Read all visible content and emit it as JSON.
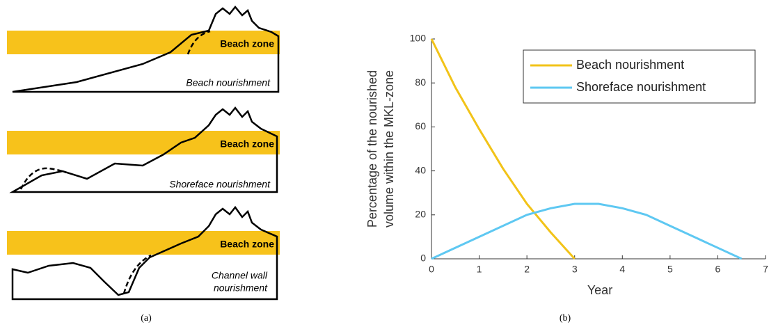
{
  "diagram": {
    "panels": [
      {
        "zone": "Beach zone",
        "label": [
          "Beach nourishment"
        ]
      },
      {
        "zone": "Beach zone",
        "label": [
          "Shoreface nourishment"
        ]
      },
      {
        "zone": "Beach zone",
        "label": [
          "Channel wall",
          "nourishment"
        ]
      }
    ],
    "caption": "(a)"
  },
  "chart_data": {
    "type": "line",
    "caption": "(b)",
    "xlabel": "Year",
    "ylabel": [
      "Percentage of the nourished",
      "volume within the MKL-zone"
    ],
    "xlim": [
      0,
      7
    ],
    "xticks": [
      0,
      1,
      2,
      3,
      4,
      5,
      6,
      7
    ],
    "ylim": [
      0,
      100
    ],
    "yticks": [
      0,
      20,
      40,
      60,
      80,
      100
    ],
    "legend": "upper right",
    "series": [
      {
        "name": "Beach nourishment",
        "color": "#f2c318",
        "x": [
          0,
          0.5,
          1,
          1.5,
          2,
          2.5,
          3
        ],
        "values": [
          100,
          78,
          59,
          41,
          25,
          12,
          0
        ]
      },
      {
        "name": "Shoreface nourishment",
        "color": "#5ec8f2",
        "x": [
          0,
          1,
          2,
          2.5,
          3,
          3.5,
          4,
          4.5,
          5,
          5.5,
          6,
          6.5
        ],
        "values": [
          0,
          10,
          20,
          23,
          25,
          25,
          23,
          20,
          15,
          10,
          5,
          0
        ]
      }
    ]
  }
}
